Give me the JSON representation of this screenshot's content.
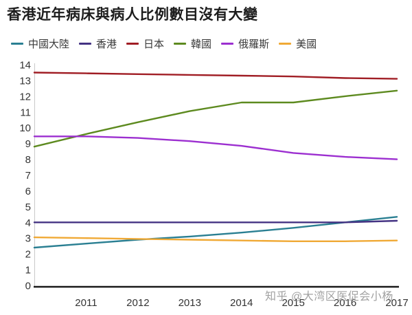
{
  "watermark": "知乎 @大湾区医促会小杨",
  "chart_data": {
    "type": "line",
    "title": "香港近年病床與病人比例數目沒有大變",
    "x": [
      2010,
      2011,
      2012,
      2013,
      2014,
      2015,
      2016,
      2017
    ],
    "x_tick_labels": [
      "2011",
      "2012",
      "2013",
      "2014",
      "2015",
      "2016",
      "2017"
    ],
    "y_ticks": [
      0,
      1,
      2,
      3,
      4,
      5,
      6,
      7,
      8,
      9,
      10,
      11,
      12,
      13,
      14
    ],
    "ylim": [
      0,
      14
    ],
    "xlabel": "",
    "ylabel": "",
    "grid": false,
    "legend_position": "top-left",
    "axis_color": "#c9c9c9",
    "baseline_color": "#1a1a1a",
    "tick_label_color": "#333333",
    "series": [
      {
        "name": "中國大陸",
        "color": "#2a7f92",
        "values": [
          2.4,
          2.65,
          2.9,
          3.1,
          3.35,
          3.65,
          4.0,
          4.35
        ]
      },
      {
        "name": "香港",
        "color": "#443383",
        "values": [
          4.0,
          4.0,
          4.0,
          4.0,
          4.0,
          4.0,
          4.0,
          4.1
        ]
      },
      {
        "name": "日本",
        "color": "#a01d24",
        "values": [
          13.5,
          13.45,
          13.4,
          13.35,
          13.3,
          13.25,
          13.15,
          13.1
        ]
      },
      {
        "name": "韓國",
        "color": "#5d8a1f",
        "values": [
          8.8,
          9.6,
          10.35,
          11.05,
          11.6,
          11.6,
          12.0,
          12.35
        ]
      },
      {
        "name": "俄羅斯",
        "color": "#9c2fd0",
        "values": [
          9.45,
          9.45,
          9.35,
          9.15,
          8.85,
          8.4,
          8.15,
          8.0
        ]
      },
      {
        "name": "美國",
        "color": "#f0a935",
        "values": [
          3.05,
          3.0,
          2.95,
          2.9,
          2.85,
          2.8,
          2.8,
          2.85
        ]
      }
    ]
  }
}
